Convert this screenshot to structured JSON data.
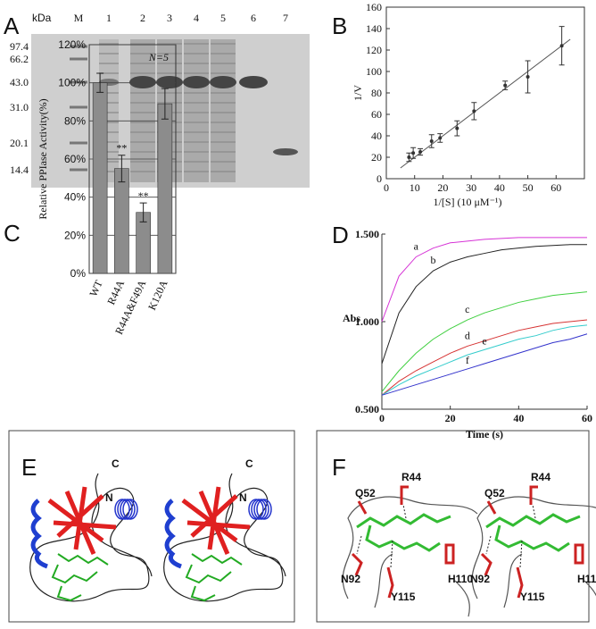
{
  "panels": {
    "A": {
      "letter": "A",
      "unit": "kDa",
      "lanes": [
        "M",
        "1",
        "2",
        "3",
        "4",
        "5",
        "6",
        "7"
      ],
      "markers": [
        "97.4",
        "66.2",
        "43.0",
        "31.0",
        "20.1",
        "14.4"
      ]
    },
    "E": {
      "letter": "E",
      "labels": [
        "C",
        "N"
      ]
    },
    "F": {
      "letter": "F",
      "residues": [
        "Q52",
        "R44",
        "N92",
        "Y115",
        "H110"
      ]
    }
  },
  "chart_data": [
    {
      "type": "scatter",
      "panel": "B",
      "ylabel": "1/V",
      "xlabel": "1/[S]  (10 μM⁻¹)",
      "x": [
        8,
        9.5,
        12,
        16,
        19,
        25,
        31,
        42,
        50,
        62
      ],
      "values": [
        20,
        24,
        25,
        35,
        38,
        47,
        63,
        87,
        95,
        124
      ],
      "errors": [
        4,
        5,
        3,
        6,
        4,
        7,
        8,
        4,
        15,
        18
      ],
      "fit": {
        "x": [
          5,
          65
        ],
        "values": [
          10,
          130
        ]
      },
      "color": "#333333",
      "xlim": [
        0,
        70
      ],
      "xticks": [
        0,
        10,
        20,
        30,
        40,
        50,
        60
      ],
      "ylim": [
        0,
        160
      ],
      "yticks": [
        0,
        20,
        40,
        60,
        80,
        100,
        120,
        140,
        160
      ]
    },
    {
      "type": "bar",
      "panel": "C",
      "ylabel": "Relative PPIase Activity(%)",
      "annotation": "N=5",
      "categories": [
        "WT",
        "R44A",
        "R44A&F49A",
        "K120A"
      ],
      "values": [
        100,
        55,
        32,
        89
      ],
      "errors": [
        5,
        7,
        5,
        8
      ],
      "value_labels": [
        null,
        "**",
        "**",
        null
      ],
      "color": "#8c8c8c",
      "grid": true,
      "ylim": [
        0,
        120
      ],
      "yticks": [
        {
          "value": 0,
          "label": "0%"
        },
        {
          "value": 20,
          "label": "20%"
        },
        {
          "value": 40,
          "label": "40%"
        },
        {
          "value": 60,
          "label": "60%"
        },
        {
          "value": 80,
          "label": "80%"
        },
        {
          "value": 100,
          "label": "100%"
        },
        {
          "value": 120,
          "label": "120%"
        }
      ]
    },
    {
      "type": "line",
      "panel": "D",
      "ylabel": "Abs",
      "xlabel": "Time (s)",
      "x": [
        0,
        5,
        10,
        15,
        20,
        25,
        30,
        35,
        40,
        45,
        50,
        55,
        60
      ],
      "series": [
        {
          "name": "a",
          "color": "#d633d6",
          "values": [
            1.0,
            1.26,
            1.37,
            1.42,
            1.45,
            1.46,
            1.47,
            1.475,
            1.48,
            1.48,
            1.48,
            1.48,
            1.48
          ]
        },
        {
          "name": "b",
          "color": "#222222",
          "values": [
            0.76,
            1.05,
            1.2,
            1.29,
            1.34,
            1.37,
            1.39,
            1.41,
            1.42,
            1.43,
            1.435,
            1.44,
            1.44
          ]
        },
        {
          "name": "c",
          "color": "#3fcf3f",
          "values": [
            0.6,
            0.72,
            0.82,
            0.9,
            0.96,
            1.01,
            1.05,
            1.08,
            1.11,
            1.13,
            1.15,
            1.16,
            1.17
          ]
        },
        {
          "name": "d",
          "color": "#d63333",
          "values": [
            0.58,
            0.66,
            0.72,
            0.77,
            0.82,
            0.86,
            0.89,
            0.92,
            0.95,
            0.97,
            0.99,
            1.0,
            1.01
          ]
        },
        {
          "name": "e",
          "color": "#33cccc",
          "values": [
            0.58,
            0.64,
            0.69,
            0.73,
            0.77,
            0.81,
            0.84,
            0.87,
            0.9,
            0.92,
            0.95,
            0.97,
            0.98
          ]
        },
        {
          "name": "f",
          "color": "#3333cc",
          "values": [
            0.58,
            0.61,
            0.64,
            0.67,
            0.7,
            0.73,
            0.76,
            0.79,
            0.82,
            0.85,
            0.88,
            0.9,
            0.93
          ]
        }
      ],
      "xlim": [
        0,
        60
      ],
      "xticks": [
        0,
        20,
        40,
        60
      ],
      "ylim": [
        0.5,
        1.5
      ],
      "yticks": [
        {
          "value": 0.5,
          "label": "0.500"
        },
        {
          "value": 1.0,
          "label": "1.000"
        },
        {
          "value": 1.5,
          "label": "1.500"
        }
      ]
    }
  ]
}
